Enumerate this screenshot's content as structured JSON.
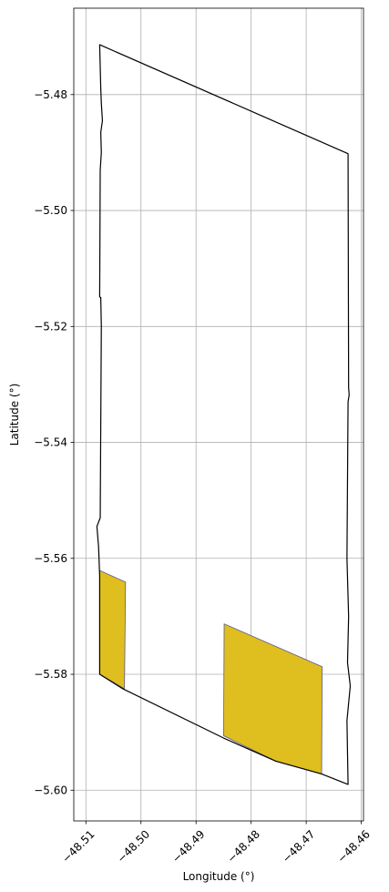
{
  "chart_data": {
    "type": "map",
    "xlabel": "Longitude (°)",
    "ylabel": "Latitude (°)",
    "xlim": [
      -48.5122,
      -48.4596
    ],
    "ylim": [
      -5.6053,
      -5.4651
    ],
    "grid": true,
    "x_ticks": [
      {
        "value": -48.51,
        "label": "−48.51"
      },
      {
        "value": -48.5,
        "label": "−48.50"
      },
      {
        "value": -48.49,
        "label": "−48.49"
      },
      {
        "value": -48.48,
        "label": "−48.48"
      },
      {
        "value": -48.47,
        "label": "−48.47"
      },
      {
        "value": -48.46,
        "label": "−48.46"
      }
    ],
    "y_ticks": [
      {
        "value": -5.48,
        "label": "−5.48"
      },
      {
        "value": -5.5,
        "label": "−5.50"
      },
      {
        "value": -5.52,
        "label": "−5.52"
      },
      {
        "value": -5.54,
        "label": "−5.54"
      },
      {
        "value": -5.56,
        "label": "−5.56"
      },
      {
        "value": -5.58,
        "label": "−5.58"
      },
      {
        "value": -5.6,
        "label": "−5.60"
      }
    ],
    "boundary": {
      "edge_color": "#000000",
      "coordinates": [
        [
          -48.5075,
          -5.4714
        ],
        [
          -48.4624,
          -5.4902
        ],
        [
          -48.4623,
          -5.5306
        ],
        [
          -48.4622,
          -5.5318
        ],
        [
          -48.4624,
          -5.533
        ],
        [
          -48.4626,
          -5.56
        ],
        [
          -48.4623,
          -5.57
        ],
        [
          -48.4625,
          -5.578
        ],
        [
          -48.462,
          -5.582
        ],
        [
          -48.4626,
          -5.588
        ],
        [
          -48.4624,
          -5.599
        ],
        [
          -48.4672,
          -5.5972
        ],
        [
          -48.4755,
          -5.595
        ],
        [
          -48.485,
          -5.591
        ],
        [
          -48.5033,
          -5.5825
        ],
        [
          -48.5075,
          -5.58
        ],
        [
          -48.5075,
          -5.563
        ],
        [
          -48.5077,
          -5.558
        ],
        [
          -48.508,
          -5.5545
        ],
        [
          -48.5074,
          -5.553
        ],
        [
          -48.5072,
          -5.52
        ],
        [
          -48.5073,
          -5.515
        ],
        [
          -48.5075,
          -5.5149
        ],
        [
          -48.5074,
          -5.493
        ],
        [
          -48.5072,
          -5.49
        ],
        [
          -48.5073,
          -5.4865
        ],
        [
          -48.507,
          -5.4845
        ],
        [
          -48.5072,
          -5.4815
        ],
        [
          -48.5073,
          -5.479
        ],
        [
          -48.5075,
          -5.4714
        ]
      ]
    },
    "features": [
      {
        "fill_color": "#DFBE20",
        "edge_color": "#5a5a8f",
        "coordinates": [
          [
            -48.5075,
            -5.5621
          ],
          [
            -48.5028,
            -5.5641
          ],
          [
            -48.503,
            -5.5825
          ],
          [
            -48.5075,
            -5.58
          ],
          [
            -48.5075,
            -5.5621
          ]
        ]
      },
      {
        "fill_color": "#DFBE20",
        "edge_color": "#5a5a8f",
        "coordinates": [
          [
            -48.4849,
            -5.5713
          ],
          [
            -48.4671,
            -5.5787
          ],
          [
            -48.4672,
            -5.5972
          ],
          [
            -48.4755,
            -5.595
          ],
          [
            -48.485,
            -5.5906
          ],
          [
            -48.4849,
            -5.5713
          ]
        ]
      }
    ]
  }
}
